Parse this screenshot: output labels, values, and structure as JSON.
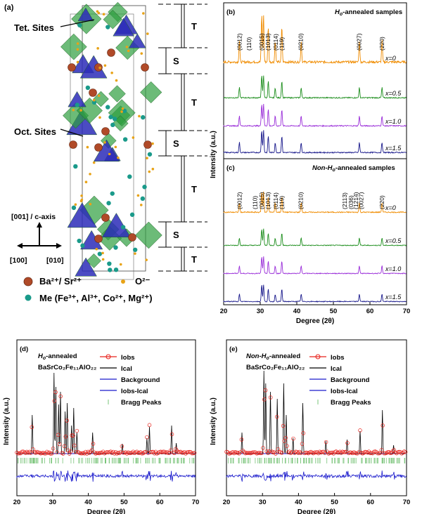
{
  "panel_a": {
    "label": "(a)",
    "tet_sites": "Tet. Sites",
    "oct_sites": "Oct. Sites",
    "blocks": [
      "T",
      "S",
      "T",
      "S",
      "T",
      "S",
      "T"
    ],
    "axis_c": "[001] / c-axis",
    "axis_100": "[100]",
    "axis_010": "[010]",
    "legend_ba": "Ba²⁺/ Sr²⁺",
    "legend_o": "O²⁻",
    "legend_me": "Me (Fe³⁺, Al³⁺, Co²⁺, Mg²⁺)",
    "colors": {
      "oct": "#2e9e3e",
      "tet": "#2b2bb8",
      "ba": "#b04a28",
      "o": "#e8a317",
      "me": "#1a9a8a"
    }
  },
  "chart_data": [
    {
      "type": "line",
      "panel": "(b)",
      "title_prefix": "H",
      "title_sub": "o",
      "title_suffix": "-annealed samples",
      "xlim": [
        20,
        70
      ],
      "peak_labels": [
        {
          "label": "(0012)",
          "x": 24.3
        },
        {
          "label": "(110)",
          "x": 26.9
        },
        {
          "label": "(0015)",
          "x": 30.4
        },
        {
          "label": "(1013)",
          "x": 32.1
        },
        {
          "label": "(0114)",
          "x": 34.2
        },
        {
          "label": "(119)",
          "x": 35.9
        },
        {
          "label": "(0210)",
          "x": 41.1
        },
        {
          "label": "(0027)",
          "x": 57.0
        },
        {
          "label": "(220)",
          "x": 63.3
        }
      ],
      "peaks_x": [
        24.3,
        30.4,
        30.9,
        32.2,
        34.1,
        35.9,
        41.2,
        57.1,
        63.3
      ],
      "series": [
        {
          "label": "x=0",
          "color": "#f08c00"
        },
        {
          "label": "x=0.5",
          "color": "#1f8f1f"
        },
        {
          "label": "x=1.0",
          "color": "#9b30d9"
        },
        {
          "label": "x=1.5",
          "color": "#1a1a8c"
        }
      ]
    },
    {
      "type": "line",
      "panel": "(c)",
      "title_prefix": "Non-H",
      "title_sub": "o",
      "title_suffix": "-annealed samples",
      "xlim": [
        20,
        70
      ],
      "xticks": [
        20,
        30,
        40,
        50,
        60,
        70
      ],
      "xlabel": "Degree (2θ)",
      "ylabel": "Intensity (a.u.)",
      "peak_labels": [
        {
          "label": "(0012)",
          "x": 24.3
        },
        {
          "label": "(110)",
          "x": 28.6
        },
        {
          "label": "(0015)",
          "x": 30.4
        },
        {
          "label": "(1013)",
          "x": 32.1
        },
        {
          "label": "(0114)",
          "x": 34.2
        },
        {
          "label": "(119)",
          "x": 35.9
        },
        {
          "label": "(0210)",
          "x": 41.1
        },
        {
          "label": "(2113)",
          "x": 53.1
        },
        {
          "label": "(036)",
          "x": 54.8
        },
        {
          "label": "(1214)",
          "x": 56.2
        },
        {
          "label": "(0027)",
          "x": 57.6
        },
        {
          "label": "(220)",
          "x": 63.3
        }
      ],
      "peaks_x": [
        24.3,
        30.4,
        30.9,
        32.2,
        34.1,
        35.9,
        41.2,
        57.1,
        63.3
      ],
      "series": [
        {
          "label": "x=0",
          "color": "#f08c00"
        },
        {
          "label": "x=0.5",
          "color": "#1f8f1f"
        },
        {
          "label": "x=1.0",
          "color": "#9b30d9"
        },
        {
          "label": "x=1.5",
          "color": "#1a1a8c"
        }
      ]
    },
    {
      "type": "scatter",
      "panel": "(d)",
      "title_prefix": "H",
      "title_sub": "o",
      "title_suffix": "-annealed",
      "formula": "BaSrCo₂Fe₁₁AlO₂₂",
      "xlim": [
        20,
        70
      ],
      "xticks": [
        20,
        30,
        40,
        50,
        60,
        70
      ],
      "xlabel": "Degree (2θ)",
      "ylabel": "Intensity (a.u.)",
      "legend": [
        "Iobs",
        "Ical",
        "Background",
        "Iobs-Ical",
        "Bragg Peaks"
      ],
      "colors": {
        "iobs": "#e8201a",
        "ical": "#000000",
        "background": "#1a1acc",
        "diff": "#1a1acc",
        "bragg": "#7ac47a"
      }
    },
    {
      "type": "scatter",
      "panel": "(e)",
      "title_prefix": "Non-H",
      "title_sub": "o",
      "title_suffix": "-annealed",
      "formula": "BaSrCo₂Fe₁₁AlO₂₂",
      "xlim": [
        20,
        70
      ],
      "xticks": [
        20,
        30,
        40,
        50,
        60,
        70
      ],
      "xlabel": "Degree (2θ)",
      "ylabel": "Intensity (a.u.)",
      "legend": [
        "Iobs",
        "Ical",
        "Background",
        "Iobs-Ical",
        "Bragg Peaks"
      ],
      "colors": {
        "iobs": "#e8201a",
        "ical": "#000000",
        "background": "#1a1acc",
        "diff": "#1a1acc",
        "bragg": "#7ac47a"
      }
    }
  ]
}
